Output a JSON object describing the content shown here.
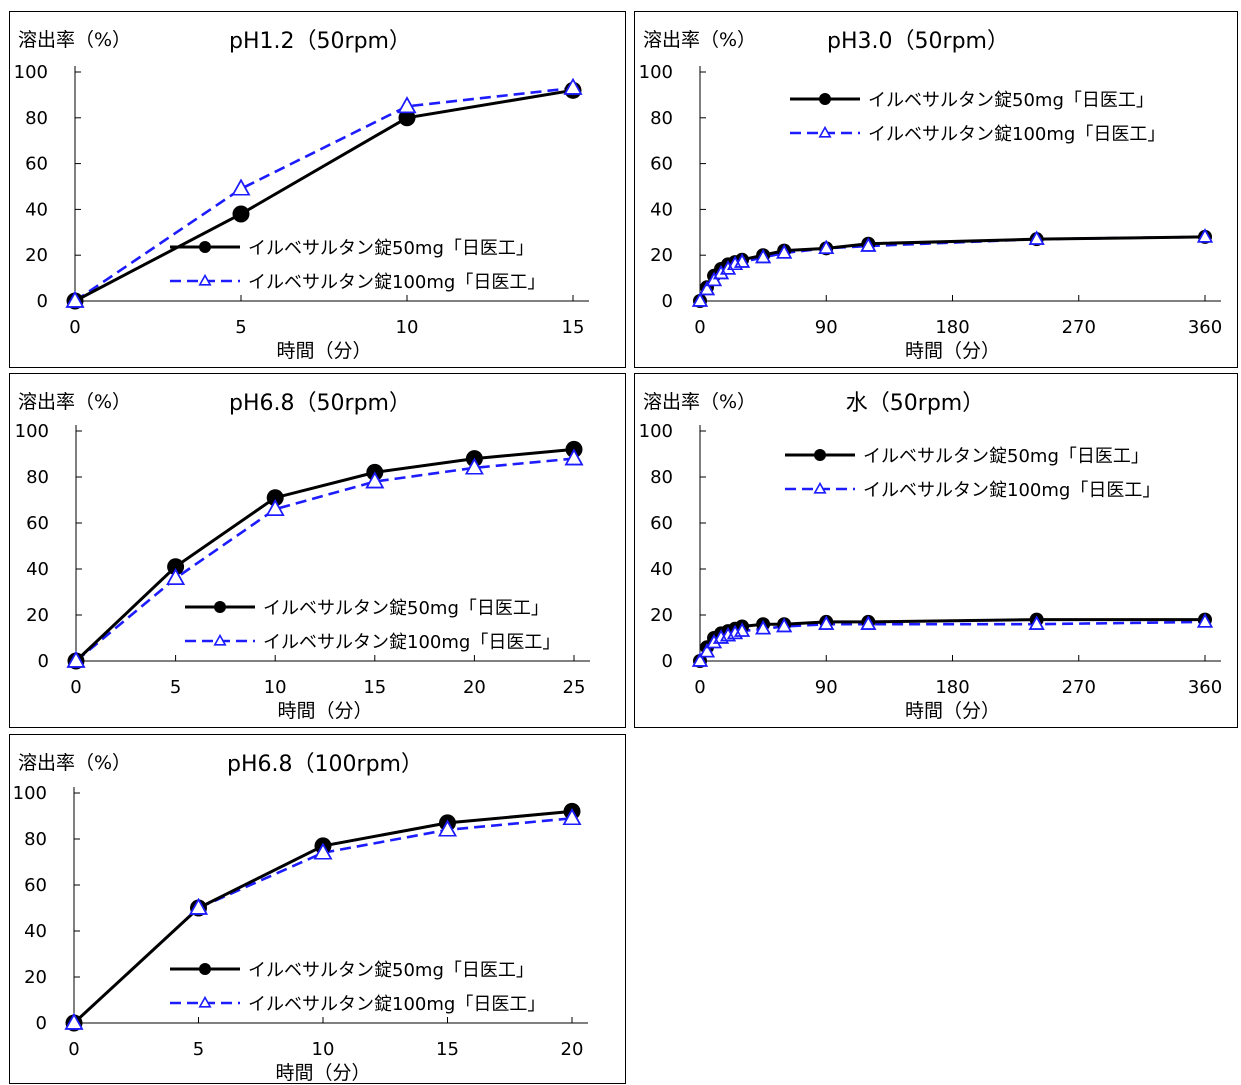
{
  "charts": [
    {
      "id": "c1",
      "xMax": 15,
      "xTicks": [
        0,
        5,
        10,
        15
      ],
      "legendPos": "bottom-right"
    },
    {
      "id": "c2",
      "xMax": 360,
      "xTicks": [
        0,
        90,
        180,
        270,
        360
      ],
      "legendPos": "top-right"
    },
    {
      "id": "c3",
      "xMax": 25,
      "xTicks": [
        0,
        5,
        10,
        15,
        20,
        25
      ],
      "legendPos": "bottom-right"
    },
    {
      "id": "c4",
      "xMax": 360,
      "xTicks": [
        0,
        90,
        180,
        270,
        360
      ],
      "legendPos": "top-right"
    },
    {
      "id": "c5",
      "xMax": 20,
      "xTicks": [
        0,
        5,
        10,
        15,
        20
      ],
      "legendPos": "bottom-right"
    }
  ],
  "chart_data": [
    {
      "type": "line",
      "title": "pH1.2（50rpm）",
      "xlabel": "時間（分）",
      "ylabel": "溶出率（%）",
      "xlim": [
        0,
        15
      ],
      "ylim": [
        0,
        100
      ],
      "yticks": [
        0,
        20,
        40,
        60,
        80,
        100
      ],
      "series": [
        {
          "name": "イルベサルタン錠50mg「日医工」",
          "color": "#000000",
          "marker": "filled-circle",
          "line": "solid",
          "x": [
            0,
            5,
            10,
            15
          ],
          "y": [
            0,
            38,
            80,
            92
          ]
        },
        {
          "name": "イルベサルタン錠100mg「日医工」",
          "color": "#1c1cff",
          "marker": "open-triangle",
          "line": "dashed",
          "x": [
            0,
            5,
            10,
            15
          ],
          "y": [
            0,
            49,
            85,
            93
          ]
        }
      ]
    },
    {
      "type": "line",
      "title": "pH3.0（50rpm）",
      "xlabel": "時間（分）",
      "ylabel": "溶出率（%）",
      "xlim": [
        0,
        360
      ],
      "ylim": [
        0,
        100
      ],
      "yticks": [
        0,
        20,
        40,
        60,
        80,
        100
      ],
      "series": [
        {
          "name": "イルベサルタン錠50mg「日医工」",
          "color": "#000000",
          "marker": "filled-circle",
          "line": "solid",
          "x": [
            0,
            5,
            10,
            15,
            20,
            25,
            30,
            45,
            60,
            90,
            120,
            240,
            360
          ],
          "y": [
            0,
            6,
            11,
            14,
            16,
            17,
            18,
            20,
            22,
            23,
            25,
            27,
            28
          ]
        },
        {
          "name": "イルベサルタン錠100mg「日医工」",
          "color": "#1c1cff",
          "marker": "open-triangle",
          "line": "dashed",
          "x": [
            0,
            5,
            10,
            15,
            20,
            25,
            30,
            45,
            60,
            90,
            120,
            240,
            360
          ],
          "y": [
            0,
            5,
            9,
            12,
            14,
            16,
            17,
            19,
            21,
            23,
            24,
            27,
            28
          ]
        }
      ]
    },
    {
      "type": "line",
      "title": "pH6.8（50rpm）",
      "xlabel": "時間（分）",
      "ylabel": "溶出率（%）",
      "xlim": [
        0,
        25
      ],
      "ylim": [
        0,
        100
      ],
      "yticks": [
        0,
        20,
        40,
        60,
        80,
        100
      ],
      "series": [
        {
          "name": "イルベサルタン錠50mg「日医工」",
          "color": "#000000",
          "marker": "filled-circle",
          "line": "solid",
          "x": [
            0,
            5,
            10,
            15,
            20,
            25
          ],
          "y": [
            0,
            41,
            71,
            82,
            88,
            92
          ]
        },
        {
          "name": "イルベサルタン錠100mg「日医工」",
          "color": "#1c1cff",
          "marker": "open-triangle",
          "line": "dashed",
          "x": [
            0,
            5,
            10,
            15,
            20,
            25
          ],
          "y": [
            0,
            36,
            66,
            78,
            84,
            88
          ]
        }
      ]
    },
    {
      "type": "line",
      "title": "水（50rpm）",
      "xlabel": "時間（分）",
      "ylabel": "溶出率（%）",
      "xlim": [
        0,
        360
      ],
      "ylim": [
        0,
        100
      ],
      "yticks": [
        0,
        20,
        40,
        60,
        80,
        100
      ],
      "series": [
        {
          "name": "イルベサルタン錠50mg「日医工」",
          "color": "#000000",
          "marker": "filled-circle",
          "line": "solid",
          "x": [
            0,
            5,
            10,
            15,
            20,
            25,
            30,
            45,
            60,
            90,
            120,
            240,
            360
          ],
          "y": [
            0,
            6,
            10,
            12,
            13,
            14,
            15,
            16,
            16,
            17,
            17,
            18,
            18
          ]
        },
        {
          "name": "イルベサルタン錠100mg「日医工」",
          "color": "#1c1cff",
          "marker": "open-triangle",
          "line": "dashed",
          "x": [
            0,
            5,
            10,
            15,
            20,
            25,
            30,
            45,
            60,
            90,
            120,
            240,
            360
          ],
          "y": [
            0,
            4,
            8,
            10,
            11,
            12,
            13,
            14,
            15,
            16,
            16,
            16,
            17
          ]
        }
      ]
    },
    {
      "type": "line",
      "title": "pH6.8（100rpm）",
      "xlabel": "時間（分）",
      "ylabel": "溶出率（%）",
      "xlim": [
        0,
        20
      ],
      "ylim": [
        0,
        100
      ],
      "yticks": [
        0,
        20,
        40,
        60,
        80,
        100
      ],
      "series": [
        {
          "name": "イルベサルタン錠50mg「日医工」",
          "color": "#000000",
          "marker": "filled-circle",
          "line": "solid",
          "x": [
            0,
            5,
            10,
            15,
            20
          ],
          "y": [
            0,
            50,
            77,
            87,
            92
          ]
        },
        {
          "name": "イルベサルタン錠100mg「日医工」",
          "color": "#1c1cff",
          "marker": "open-triangle",
          "line": "dashed",
          "x": [
            0,
            5,
            10,
            15,
            20
          ],
          "y": [
            0,
            50,
            74,
            84,
            89
          ]
        }
      ]
    }
  ]
}
